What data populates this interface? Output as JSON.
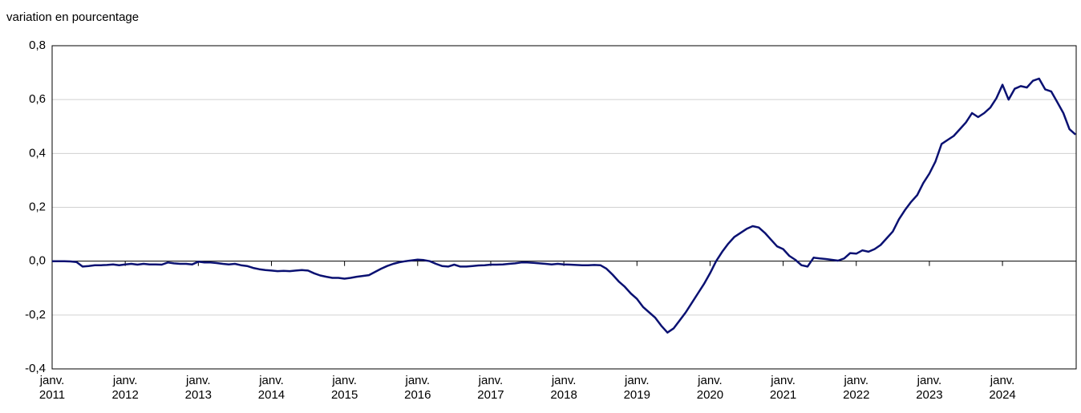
{
  "chart_data": {
    "type": "line",
    "y_label": "variation en pourcentage",
    "categories": [
      "janv. 2011",
      null,
      null,
      null,
      null,
      null,
      null,
      null,
      null,
      null,
      null,
      null,
      "janv. 2012",
      null,
      null,
      null,
      null,
      null,
      null,
      null,
      null,
      null,
      null,
      null,
      "janv. 2013",
      null,
      null,
      null,
      null,
      null,
      null,
      null,
      null,
      null,
      null,
      null,
      "janv. 2014",
      null,
      null,
      null,
      null,
      null,
      null,
      null,
      null,
      null,
      null,
      null,
      "janv. 2015",
      null,
      null,
      null,
      null,
      null,
      null,
      null,
      null,
      null,
      null,
      null,
      "janv. 2016",
      null,
      null,
      null,
      null,
      null,
      null,
      null,
      null,
      null,
      null,
      null,
      "janv. 2017",
      null,
      null,
      null,
      null,
      null,
      null,
      null,
      null,
      null,
      null,
      null,
      "janv. 2018",
      null,
      null,
      null,
      null,
      null,
      null,
      null,
      null,
      null,
      null,
      null,
      "janv. 2019",
      null,
      null,
      null,
      null,
      null,
      null,
      null,
      null,
      null,
      null,
      null,
      "janv. 2020",
      null,
      null,
      null,
      null,
      null,
      null,
      null,
      null,
      null,
      null,
      null,
      "janv. 2021",
      null,
      null,
      null,
      null,
      null,
      null,
      null,
      null,
      null,
      null,
      null,
      "janv. 2022",
      null,
      null,
      null,
      null,
      null,
      null,
      null,
      null,
      null,
      null,
      null,
      "janv. 2023",
      null,
      null,
      null,
      null,
      null,
      null,
      null,
      null,
      null,
      null,
      null,
      "janv. 2024",
      null,
      null,
      null,
      null,
      null,
      null,
      null,
      null,
      null,
      null,
      null,
      null
    ],
    "values": [
      0,
      0,
      0,
      -0.001,
      -0.003,
      -0.02,
      -0.018,
      -0.015,
      -0.015,
      -0.014,
      -0.012,
      -0.015,
      -0.012,
      -0.01,
      -0.013,
      -0.01,
      -0.012,
      -0.012,
      -0.013,
      -0.005,
      -0.008,
      -0.01,
      -0.01,
      -0.012,
      -0.002,
      -0.005,
      -0.005,
      -0.007,
      -0.01,
      -0.012,
      -0.01,
      -0.015,
      -0.018,
      -0.025,
      -0.03,
      -0.033,
      -0.035,
      -0.037,
      -0.036,
      -0.037,
      -0.035,
      -0.033,
      -0.035,
      -0.045,
      -0.053,
      -0.058,
      -0.062,
      -0.062,
      -0.065,
      -0.062,
      -0.058,
      -0.055,
      -0.052,
      -0.04,
      -0.028,
      -0.018,
      -0.01,
      -0.004,
      0,
      0.003,
      0.006,
      0.004,
      0,
      -0.01,
      -0.018,
      -0.02,
      -0.013,
      -0.02,
      -0.02,
      -0.018,
      -0.016,
      -0.015,
      -0.013,
      -0.013,
      -0.012,
      -0.01,
      -0.008,
      -0.005,
      -0.005,
      -0.006,
      -0.008,
      -0.01,
      -0.012,
      -0.01,
      -0.012,
      -0.013,
      -0.014,
      -0.015,
      -0.015,
      -0.014,
      -0.015,
      -0.028,
      -0.05,
      -0.075,
      -0.095,
      -0.12,
      -0.14,
      -0.17,
      -0.19,
      -0.21,
      -0.24,
      -0.265,
      -0.25,
      -0.22,
      -0.19,
      -0.155,
      -0.12,
      -0.085,
      -0.045,
      0,
      0.035,
      0.065,
      0.09,
      0.105,
      0.12,
      0.13,
      0.125,
      0.105,
      0.08,
      0.055,
      0.045,
      0.02,
      0.005,
      -0.015,
      -0.02,
      0.013,
      0.01,
      0.008,
      0.005,
      0.002,
      0.01,
      0.03,
      0.028,
      0.04,
      0.035,
      0.045,
      0.06,
      0.085,
      0.11,
      0.155,
      0.19,
      0.22,
      0.245,
      0.29,
      0.325,
      0.37,
      0.435,
      0.45,
      0.465,
      0.49,
      0.515,
      0.55,
      0.535,
      0.55,
      0.57,
      0.605,
      0.655,
      0.6,
      0.64,
      0.65,
      0.645,
      0.67,
      0.678,
      0.638,
      0.63,
      0.59,
      0.55,
      0.49,
      0.47
    ],
    "color": "#0a1172",
    "ylim": [
      -0.4,
      0.8
    ],
    "yticks": [
      {
        "value": -0.4,
        "label": "-0,4"
      },
      {
        "value": -0.2,
        "label": "-0,2"
      },
      {
        "value": 0,
        "label": "0,0"
      },
      {
        "value": 0.2,
        "label": "0,2"
      },
      {
        "value": 0.4,
        "label": "0,4"
      },
      {
        "value": 0.6,
        "label": "0,6"
      },
      {
        "value": 0.8,
        "label": "0,8"
      }
    ],
    "grid": true
  }
}
